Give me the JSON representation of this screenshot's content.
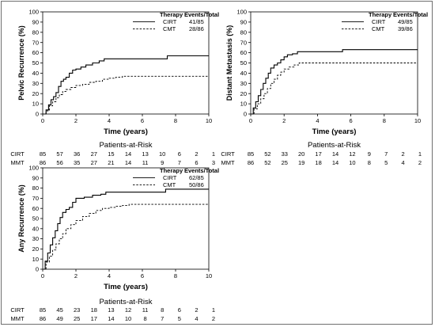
{
  "chart_data": [
    {
      "type": "line",
      "ylabel": "Pelvic Recurrence (%)",
      "xlabel": "Time (years)",
      "xlim": [
        0,
        10
      ],
      "ylim": [
        0,
        100
      ],
      "x_ticks": [
        0,
        2,
        4,
        6,
        8,
        10
      ],
      "y_ticks": [
        0,
        10,
        20,
        30,
        40,
        50,
        60,
        70,
        80,
        90,
        100
      ],
      "legend_header": [
        "Therapy",
        "Events/Total"
      ],
      "legend_position": "top-right",
      "series": [
        {
          "name": "CIRT",
          "events": "41/85",
          "style": "solid",
          "x": [
            0,
            0.2,
            0.35,
            0.5,
            0.65,
            0.8,
            0.95,
            1.1,
            1.25,
            1.4,
            1.6,
            1.8,
            2.0,
            2.3,
            2.6,
            3.0,
            3.4,
            3.7,
            5.0,
            7.5,
            10
          ],
          "y": [
            0,
            4,
            9,
            14,
            17,
            21,
            27,
            32,
            34,
            36,
            40,
            43,
            44,
            46,
            48,
            50,
            52,
            54,
            54,
            57,
            57
          ]
        },
        {
          "name": "CMT",
          "events": "28/86",
          "style": "dashed",
          "x": [
            0,
            0.2,
            0.4,
            0.6,
            0.8,
            1.0,
            1.2,
            1.4,
            1.7,
            2.0,
            2.4,
            2.8,
            3.2,
            3.6,
            4.0,
            4.4,
            4.8,
            10
          ],
          "y": [
            0,
            3,
            8,
            12,
            16,
            19,
            22,
            24,
            26,
            28,
            29,
            31,
            32,
            34,
            35,
            36,
            37,
            37
          ]
        }
      ],
      "risk_table": {
        "title": "Patients-at-Risk",
        "rows": [
          {
            "label": "CIRT",
            "values": [
              "85",
              "57",
              "36",
              "27",
              "15",
              "14",
              "13",
              "10",
              "6",
              "2",
              "1"
            ]
          },
          {
            "label": "MMT",
            "values": [
              "86",
              "56",
              "35",
              "27",
              "21",
              "14",
              "11",
              "9",
              "7",
              "6",
              "3"
            ]
          }
        ]
      }
    },
    {
      "type": "line",
      "ylabel": "Distant Metastasis (%)",
      "xlabel": "Time (years)",
      "xlim": [
        0,
        10
      ],
      "ylim": [
        0,
        100
      ],
      "x_ticks": [
        0,
        2,
        4,
        6,
        8,
        10
      ],
      "y_ticks": [
        0,
        10,
        20,
        30,
        40,
        50,
        60,
        70,
        80,
        90,
        100
      ],
      "legend_header": [
        "Therapy",
        "Events/Total"
      ],
      "legend_position": "top-right",
      "series": [
        {
          "name": "CIRT",
          "events": "49/85",
          "style": "solid",
          "x": [
            0,
            0.15,
            0.3,
            0.45,
            0.6,
            0.75,
            0.9,
            1.05,
            1.2,
            1.4,
            1.6,
            1.8,
            2.0,
            2.2,
            2.5,
            2.8,
            5.5,
            10
          ],
          "y": [
            0,
            6,
            12,
            18,
            24,
            30,
            35,
            40,
            45,
            48,
            50,
            53,
            56,
            58,
            59,
            61,
            63,
            63
          ]
        },
        {
          "name": "CMT",
          "events": "39/86",
          "style": "dashed",
          "x": [
            0,
            0.2,
            0.4,
            0.6,
            0.8,
            1.0,
            1.2,
            1.4,
            1.6,
            1.8,
            2.0,
            2.3,
            2.6,
            2.9,
            10
          ],
          "y": [
            0,
            5,
            10,
            15,
            20,
            25,
            30,
            34,
            38,
            41,
            44,
            46,
            48,
            50,
            50
          ]
        }
      ],
      "risk_table": {
        "title": "Patients-at-Risk",
        "rows": [
          {
            "label": "CIRT",
            "values": [
              "85",
              "52",
              "33",
              "20",
              "17",
              "14",
              "12",
              "9",
              "7",
              "2",
              "1"
            ]
          },
          {
            "label": "MMT",
            "values": [
              "86",
              "52",
              "25",
              "19",
              "18",
              "14",
              "10",
              "8",
              "5",
              "4",
              "2"
            ]
          }
        ]
      }
    },
    {
      "type": "line",
      "ylabel": "Any Recurrence (%)",
      "xlabel": "Time (years)",
      "xlim": [
        0,
        10
      ],
      "ylim": [
        0,
        100
      ],
      "x_ticks": [
        0,
        2,
        4,
        6,
        8,
        10
      ],
      "y_ticks": [
        0,
        10,
        20,
        30,
        40,
        50,
        60,
        70,
        80,
        90,
        100
      ],
      "legend_header": [
        "Therapy",
        "Events/Total"
      ],
      "legend_position": "top-right",
      "series": [
        {
          "name": "CIRT",
          "events": "62/85",
          "style": "solid",
          "x": [
            0,
            0.15,
            0.3,
            0.45,
            0.6,
            0.75,
            0.9,
            1.05,
            1.2,
            1.4,
            1.6,
            1.8,
            2.0,
            2.5,
            3.0,
            3.5,
            3.8,
            7.0,
            7.4,
            10
          ],
          "y": [
            0,
            8,
            16,
            24,
            31,
            38,
            45,
            51,
            56,
            59,
            61,
            66,
            70,
            71,
            73,
            74,
            76,
            76,
            79,
            79
          ]
        },
        {
          "name": "CMT",
          "events": "50/86",
          "style": "dashed",
          "x": [
            0,
            0.2,
            0.4,
            0.6,
            0.8,
            1.0,
            1.2,
            1.4,
            1.7,
            2.0,
            2.4,
            2.8,
            3.2,
            3.6,
            4.0,
            4.4,
            4.8,
            5.2,
            10
          ],
          "y": [
            0,
            7,
            13,
            19,
            25,
            30,
            35,
            40,
            44,
            48,
            52,
            55,
            58,
            60,
            61,
            62,
            63,
            64,
            64
          ]
        }
      ],
      "risk_table": {
        "title": "Patients-at-Risk",
        "rows": [
          {
            "label": "CIRT",
            "values": [
              "85",
              "45",
              "23",
              "18",
              "13",
              "12",
              "11",
              "8",
              "6",
              "2",
              "1"
            ]
          },
          {
            "label": "MMT",
            "values": [
              "86",
              "49",
              "25",
              "17",
              "14",
              "10",
              "8",
              "7",
              "5",
              "4",
              "2"
            ]
          }
        ]
      }
    }
  ]
}
